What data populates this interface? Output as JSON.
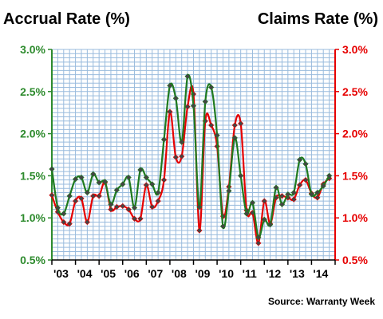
{
  "chart_data": {
    "type": "line",
    "title_left": "Accrual Rate (%)",
    "title_right": "Claims Rate (%)",
    "source": "Source: Warranty Week",
    "colors": {
      "accrual": "#1f7a1f",
      "claims": "#e60000",
      "left_axis": "#2e8b2e",
      "right_axis": "#e60000",
      "grid": "#99bbdd",
      "marker_fill": "#444444"
    },
    "ylim": [
      0.5,
      3.0
    ],
    "left_ticks": [
      "0.5%",
      "1.0%",
      "1.5%",
      "2.0%",
      "2.5%",
      "3.0%"
    ],
    "right_ticks": [
      "0.5%",
      "1.0%",
      "1.5%",
      "2.0%",
      "2.5%",
      "3.0%"
    ],
    "tick_values": [
      0.5,
      1.0,
      1.5,
      2.0,
      2.5,
      3.0
    ],
    "x_range": [
      2003.0,
      2015.0
    ],
    "x_labels": [
      "'03",
      "'04",
      "'05",
      "'06",
      "'07",
      "'08",
      "'09",
      "'10",
      "'11",
      "'12",
      "'13",
      "'14"
    ],
    "grid": true,
    "series": [
      {
        "name": "Accrual Rate (%)",
        "x": [
          2003.0,
          2003.25,
          2003.5,
          2003.75,
          2004.0,
          2004.25,
          2004.5,
          2004.75,
          2005.0,
          2005.25,
          2005.5,
          2005.75,
          2006.0,
          2006.25,
          2006.5,
          2006.75,
          2007.0,
          2007.25,
          2007.5,
          2007.75,
          2008.0,
          2008.25,
          2008.5,
          2008.75,
          2009.0,
          2009.25,
          2009.5,
          2009.75,
          2010.0,
          2010.25,
          2010.5,
          2010.75,
          2011.0,
          2011.25,
          2011.5,
          2011.75,
          2012.0,
          2012.25,
          2012.5,
          2012.75,
          2013.0,
          2013.25,
          2013.5,
          2013.75,
          2014.0,
          2014.25,
          2014.5,
          2014.75
        ],
        "values": [
          1.58,
          1.12,
          1.05,
          1.26,
          1.46,
          1.48,
          1.3,
          1.52,
          1.42,
          1.43,
          1.16,
          1.33,
          1.4,
          1.48,
          1.12,
          1.57,
          1.48,
          1.4,
          1.3,
          1.93,
          2.57,
          2.42,
          1.9,
          2.68,
          2.33,
          1.13,
          2.38,
          2.55,
          1.98,
          0.9,
          1.32,
          1.95,
          1.5,
          1.05,
          1.18,
          0.77,
          0.98,
          0.92,
          1.36,
          1.16,
          1.28,
          1.3,
          1.69,
          1.64,
          1.28,
          1.3,
          1.38,
          1.5
        ]
      },
      {
        "name": "Claims Rate (%)",
        "x": [
          2003.0,
          2003.25,
          2003.5,
          2003.75,
          2004.0,
          2004.25,
          2004.5,
          2004.75,
          2005.0,
          2005.25,
          2005.5,
          2005.75,
          2006.0,
          2006.25,
          2006.5,
          2006.75,
          2007.0,
          2007.25,
          2007.5,
          2007.75,
          2008.0,
          2008.25,
          2008.5,
          2008.75,
          2009.0,
          2009.25,
          2009.5,
          2009.75,
          2010.0,
          2010.25,
          2010.5,
          2010.75,
          2011.0,
          2011.25,
          2011.5,
          2011.75,
          2012.0,
          2012.25,
          2012.5,
          2012.75,
          2013.0,
          2013.25,
          2013.5,
          2013.75,
          2014.0,
          2014.25,
          2014.5,
          2014.75
        ],
        "values": [
          1.27,
          1.07,
          0.95,
          0.93,
          1.2,
          1.23,
          0.95,
          1.26,
          1.26,
          1.42,
          1.1,
          1.13,
          1.14,
          1.1,
          0.99,
          0.99,
          1.39,
          1.13,
          1.2,
          1.45,
          2.26,
          1.72,
          1.73,
          2.32,
          2.47,
          0.85,
          2.15,
          2.1,
          1.85,
          1.02,
          1.37,
          2.1,
          2.12,
          1.09,
          1.06,
          0.7,
          1.2,
          0.93,
          1.24,
          1.26,
          1.24,
          1.22,
          1.39,
          1.45,
          1.29,
          1.24,
          1.4,
          1.47
        ]
      }
    ]
  }
}
